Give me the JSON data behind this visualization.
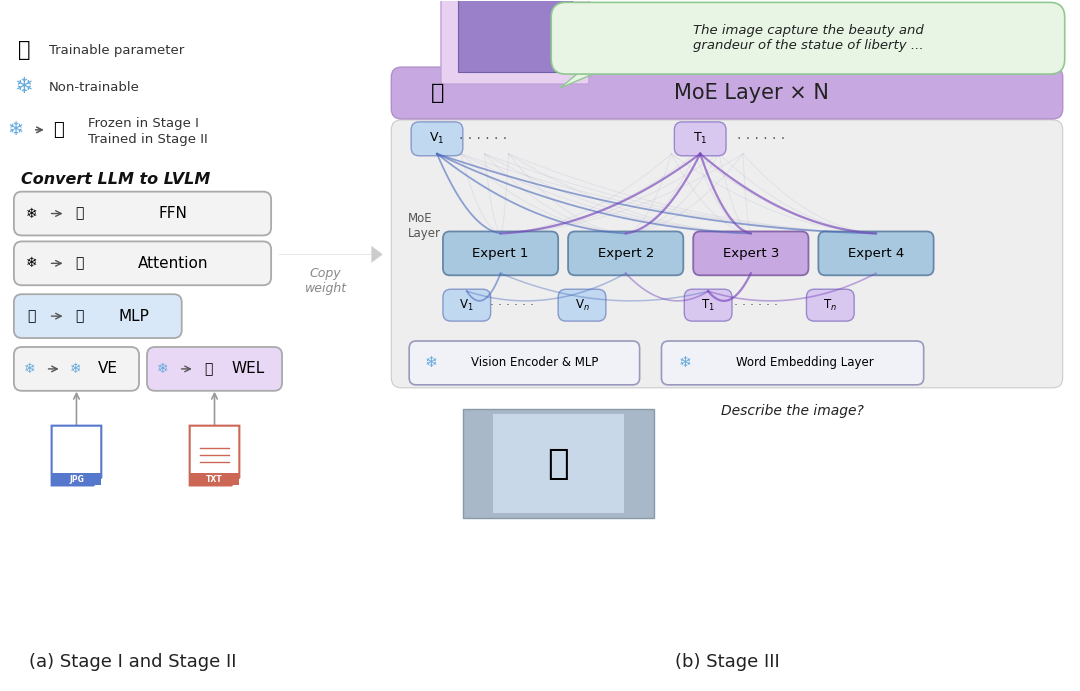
{
  "fig_width": 10.8,
  "fig_height": 6.91,
  "bg_color": "#ffffff",
  "fire": "🔥",
  "snowflake": "❄",
  "moe_layer_text": "MoE Layer × N",
  "moe_layer_bg": "#c8a8e0",
  "moe_layer_border": "#b090c8",
  "speech_bubble_text": "The image capture the beauty and\ngrandeur of the statue of liberty ...",
  "speech_bubble_bg": "#e8f5e5",
  "speech_bubble_border": "#90c890",
  "expert_labels": [
    "Expert 1",
    "Expert 2",
    "Expert 3",
    "Expert 4"
  ],
  "expert_bgs": [
    "#a8c8e0",
    "#a8c8e0",
    "#c8a8e0",
    "#a8c8e0"
  ],
  "expert_borders": [
    "#6888aa",
    "#6888aa",
    "#8868aa",
    "#6888aa"
  ],
  "vision_encoder_text": "Vision Encoder & MLP",
  "word_embedding_text": "Word Embedding Layer",
  "describe_text": "Describe the image?",
  "stage_a_label": "(a) Stage I and Stage II",
  "stage_b_label": "(b) Stage III",
  "copy_weight_text": "Copy\nweight",
  "convert_title": "Convert LLM to LVLM",
  "legend_trainable": "Trainable parameter",
  "legend_non": "Non-trainable",
  "legend_frozen": "Frozen in Stage I\nTrained in Stage II",
  "token_v1_color": "#c0d8f0",
  "token_v1_border": "#8899cc",
  "token_t1_color": "#d8c8f0",
  "token_t1_border": "#9988cc",
  "blue_conn": "#4466bb",
  "purple_conn": "#7744bb",
  "gray_conn": "#aaaacc"
}
